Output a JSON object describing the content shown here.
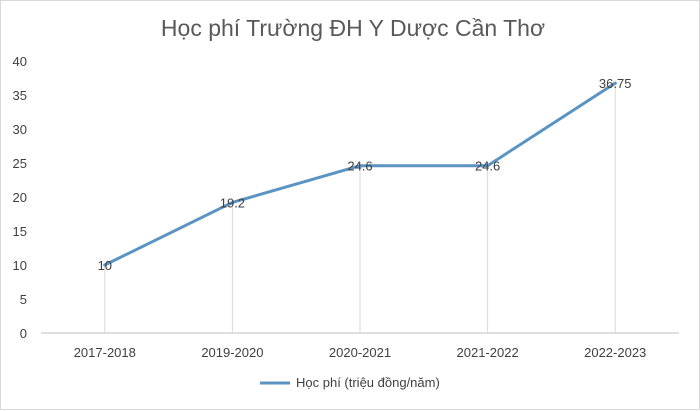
{
  "colors": {
    "series": "#5b93c2",
    "axis": "#bfbfbf",
    "gridline": "#d9d9d9"
  },
  "chart_data": {
    "type": "line",
    "title": "Học phí Trường ĐH Y Dược Cần Thơ",
    "categories": [
      "2017-2018",
      "2019-2020",
      "2020-2021",
      "2021-2022",
      "2022-2023"
    ],
    "series": [
      {
        "name": "Học phí (triệu đồng/năm)",
        "values": [
          10,
          19.2,
          24.6,
          24.6,
          36.75
        ],
        "data_labels": [
          "10",
          "19.2",
          "24.6",
          "24.6",
          "36.75"
        ]
      }
    ],
    "ylim": [
      0,
      40
    ],
    "yticks": [
      "0",
      "5",
      "10",
      "15",
      "20",
      "25",
      "30",
      "35",
      "40"
    ],
    "grid": "vertical drop lines at points",
    "legend": "bottom"
  }
}
